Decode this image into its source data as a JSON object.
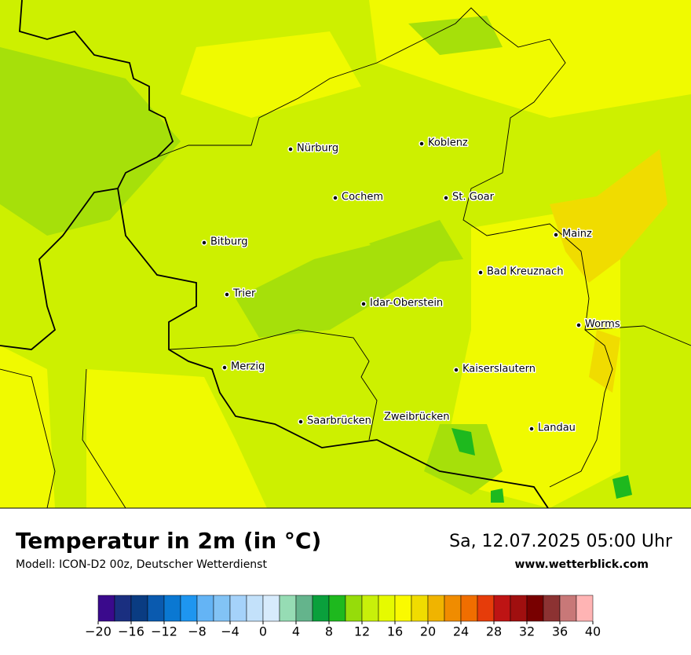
{
  "map": {
    "cities": [
      "Nürburg",
      "Koblenz",
      "Cochem",
      "St. Goar",
      "Bitburg",
      "Mainz",
      "Bad Kreuznach",
      "Trier",
      "Idar-Oberstein",
      "Worms",
      "Merzig",
      "Kaiserslautern",
      "Saarbrücken",
      "Zweibrücken",
      "Landau"
    ]
  },
  "footer": {
    "title": "Temperatur in 2m (in °C)",
    "subtitle": "Modell: ICON-D2 00z, Deutscher Wetterdienst",
    "datetime": "Sa, 12.07.2025 05:00 Uhr",
    "website": "www.wetterblick.com"
  },
  "colorbar": {
    "lim": [
      -20,
      40
    ],
    "colors": [
      "#3a0a8c",
      "#1a2f80",
      "#0a3c82",
      "#0a5aaf",
      "#0a78d2",
      "#1e96f0",
      "#64b4f5",
      "#82c3f5",
      "#a5d2fa",
      "#c3e1fa",
      "#d7ebfc",
      "#96dcb4",
      "#64b48c",
      "#0aa03c",
      "#1eb91e",
      "#96dc0a",
      "#c8f00a",
      "#e6fa00",
      "#fafa00",
      "#f0dc00",
      "#f0b400",
      "#f08c00",
      "#f06e00",
      "#e63c0a",
      "#be1414",
      "#a00f0f",
      "#780000",
      "#8c3232",
      "#c87878",
      "#ffb4b4"
    ],
    "ticks": [
      {
        "value": -20,
        "label": "−20"
      },
      {
        "value": -16,
        "label": "−16"
      },
      {
        "value": -12,
        "label": "−12"
      },
      {
        "value": -8,
        "label": "−8"
      },
      {
        "value": -4,
        "label": "−4"
      },
      0,
      4,
      8,
      12,
      16,
      20,
      24,
      28,
      32,
      36,
      40
    ]
  }
}
